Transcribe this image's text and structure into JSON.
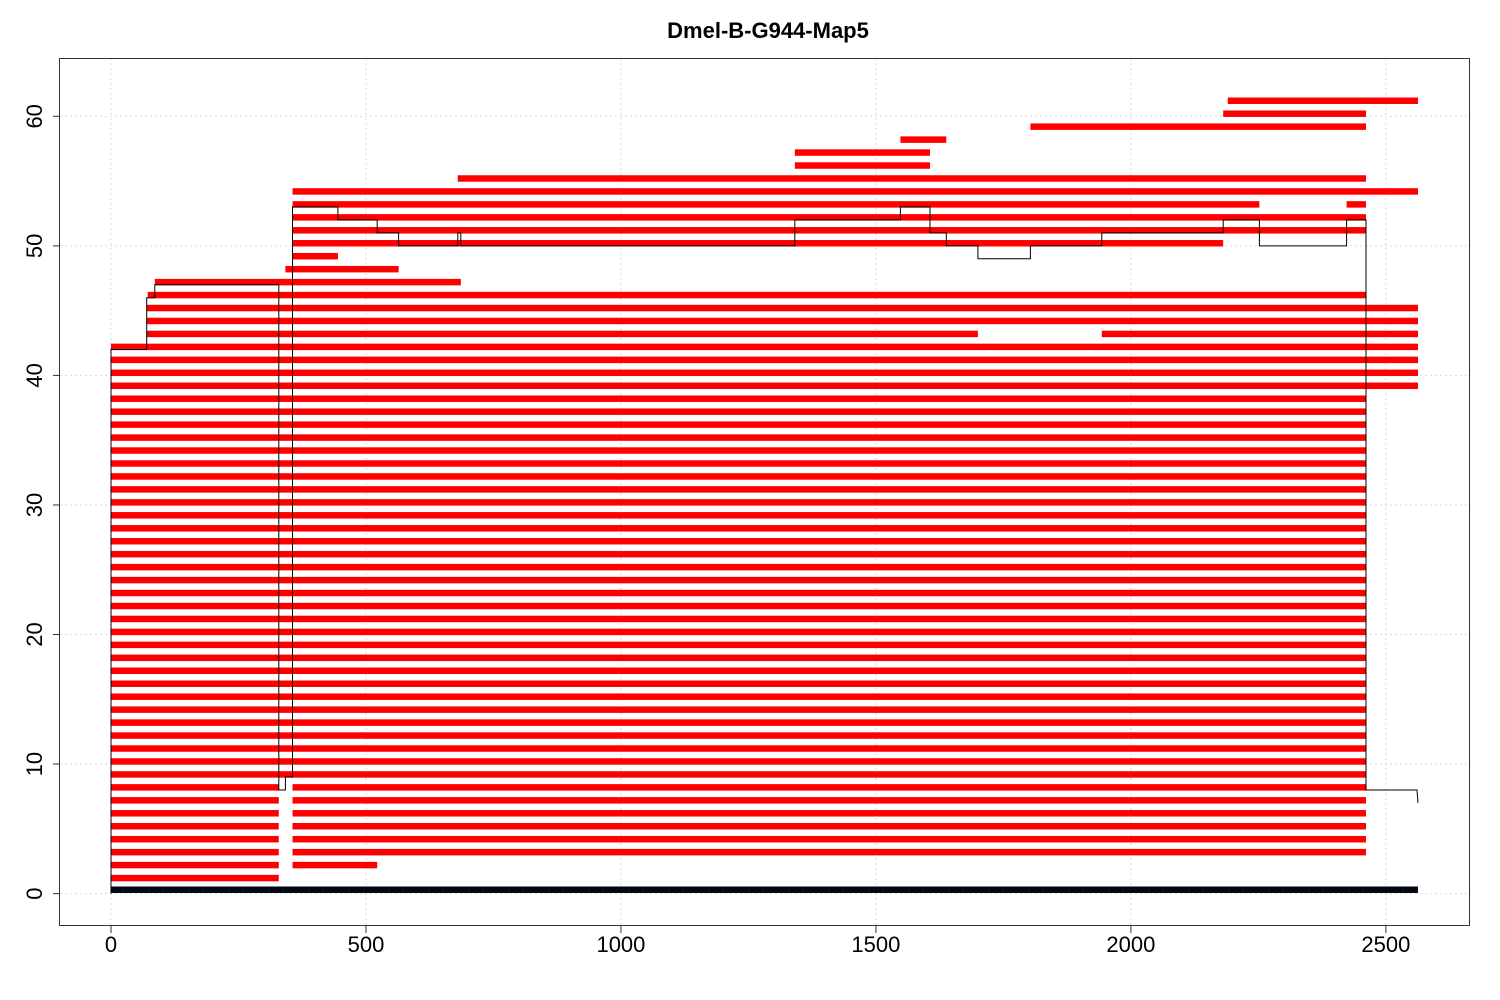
{
  "chart_data": {
    "type": "segment-map",
    "title": "Dmel-B-G944-Map5",
    "xlim": [
      -100,
      2665
    ],
    "ylim": [
      -2.5,
      64.5
    ],
    "x_ticks": [
      0,
      500,
      1000,
      1500,
      2000,
      2500
    ],
    "x_tick_labels": [
      "0",
      "500",
      "1000",
      "1500",
      "2000",
      "2500"
    ],
    "y_ticks": [
      0,
      10,
      20,
      30,
      40,
      50,
      60
    ],
    "y_tick_labels": [
      "0",
      "10",
      "20",
      "30",
      "40",
      "50",
      "60"
    ],
    "grid": true,
    "reference": {
      "y": 0.3,
      "x_start": 0,
      "x_end": 2563,
      "color": "#000814"
    },
    "bar_color": "#ff0000",
    "reads": [
      {
        "y": 1.2,
        "segments": [
          [
            0,
            329
          ]
        ]
      },
      {
        "y": 2.2,
        "segments": [
          [
            0,
            329
          ],
          [
            356,
            522
          ]
        ]
      },
      {
        "y": 3.2,
        "segments": [
          [
            0,
            329
          ],
          [
            356,
            2461
          ]
        ]
      },
      {
        "y": 4.2,
        "segments": [
          [
            0,
            329
          ],
          [
            356,
            2461
          ]
        ]
      },
      {
        "y": 5.2,
        "segments": [
          [
            0,
            329
          ],
          [
            356,
            2461
          ]
        ]
      },
      {
        "y": 6.2,
        "segments": [
          [
            0,
            329
          ],
          [
            356,
            2461
          ]
        ]
      },
      {
        "y": 7.2,
        "segments": [
          [
            0,
            329
          ],
          [
            356,
            2461
          ]
        ]
      },
      {
        "y": 8.2,
        "segments": [
          [
            0,
            329
          ],
          [
            356,
            2461
          ]
        ]
      },
      {
        "y": 9.2,
        "segments": [
          [
            0,
            2461
          ]
        ]
      },
      {
        "y": 10.2,
        "segments": [
          [
            0,
            2461
          ]
        ]
      },
      {
        "y": 11.2,
        "segments": [
          [
            0,
            2461
          ]
        ]
      },
      {
        "y": 12.2,
        "segments": [
          [
            0,
            2461
          ]
        ]
      },
      {
        "y": 13.2,
        "segments": [
          [
            0,
            2461
          ]
        ]
      },
      {
        "y": 14.2,
        "segments": [
          [
            0,
            2461
          ]
        ]
      },
      {
        "y": 15.2,
        "segments": [
          [
            0,
            2461
          ]
        ]
      },
      {
        "y": 16.2,
        "segments": [
          [
            0,
            2461
          ]
        ]
      },
      {
        "y": 17.2,
        "segments": [
          [
            0,
            2461
          ]
        ]
      },
      {
        "y": 18.2,
        "segments": [
          [
            0,
            2461
          ]
        ]
      },
      {
        "y": 19.2,
        "segments": [
          [
            0,
            2461
          ]
        ]
      },
      {
        "y": 20.2,
        "segments": [
          [
            0,
            2461
          ]
        ]
      },
      {
        "y": 21.2,
        "segments": [
          [
            0,
            2461
          ]
        ]
      },
      {
        "y": 22.2,
        "segments": [
          [
            0,
            2461
          ]
        ]
      },
      {
        "y": 23.2,
        "segments": [
          [
            0,
            2461
          ]
        ]
      },
      {
        "y": 24.2,
        "segments": [
          [
            0,
            2461
          ]
        ]
      },
      {
        "y": 25.2,
        "segments": [
          [
            0,
            2461
          ]
        ]
      },
      {
        "y": 26.2,
        "segments": [
          [
            0,
            2461
          ]
        ]
      },
      {
        "y": 27.2,
        "segments": [
          [
            0,
            2461
          ]
        ]
      },
      {
        "y": 28.2,
        "segments": [
          [
            0,
            2461
          ]
        ]
      },
      {
        "y": 29.2,
        "segments": [
          [
            0,
            2461
          ]
        ]
      },
      {
        "y": 30.2,
        "segments": [
          [
            0,
            2461
          ]
        ]
      },
      {
        "y": 31.2,
        "segments": [
          [
            0,
            2461
          ]
        ]
      },
      {
        "y": 32.2,
        "segments": [
          [
            0,
            2461
          ]
        ]
      },
      {
        "y": 33.2,
        "segments": [
          [
            0,
            2461
          ]
        ]
      },
      {
        "y": 34.2,
        "segments": [
          [
            0,
            2461
          ]
        ]
      },
      {
        "y": 35.2,
        "segments": [
          [
            0,
            2461
          ]
        ]
      },
      {
        "y": 36.2,
        "segments": [
          [
            0,
            2461
          ]
        ]
      },
      {
        "y": 37.2,
        "segments": [
          [
            0,
            2461
          ]
        ]
      },
      {
        "y": 38.2,
        "segments": [
          [
            0,
            2461
          ]
        ]
      },
      {
        "y": 39.2,
        "segments": [
          [
            0,
            2461
          ],
          [
            2461,
            2563
          ]
        ]
      },
      {
        "y": 40.2,
        "segments": [
          [
            0,
            2461
          ],
          [
            2461,
            2563
          ]
        ]
      },
      {
        "y": 41.2,
        "segments": [
          [
            0,
            2461
          ],
          [
            2461,
            2563
          ]
        ]
      },
      {
        "y": 42.2,
        "segments": [
          [
            0,
            2461
          ],
          [
            2461,
            2563
          ]
        ]
      },
      {
        "y": 43.2,
        "segments": [
          [
            70,
            1700
          ],
          [
            1943,
            2563
          ]
        ]
      },
      {
        "y": 44.2,
        "segments": [
          [
            70,
            2563
          ]
        ]
      },
      {
        "y": 45.2,
        "segments": [
          [
            70,
            2563
          ]
        ]
      },
      {
        "y": 46.2,
        "segments": [
          [
            72,
            2461
          ]
        ]
      },
      {
        "y": 47.2,
        "segments": [
          [
            86,
            686
          ]
        ]
      },
      {
        "y": 48.2,
        "segments": [
          [
            342,
            564
          ]
        ]
      },
      {
        "y": 49.2,
        "segments": [
          [
            356,
            445
          ]
        ]
      },
      {
        "y": 50.2,
        "segments": [
          [
            356,
            2181
          ]
        ]
      },
      {
        "y": 51.2,
        "segments": [
          [
            356,
            2461
          ]
        ]
      },
      {
        "y": 52.2,
        "segments": [
          [
            356,
            2461
          ]
        ]
      },
      {
        "y": 53.2,
        "segments": [
          [
            356,
            2252
          ],
          [
            2423,
            2461
          ]
        ]
      },
      {
        "y": 54.2,
        "segments": [
          [
            356,
            2563
          ]
        ]
      },
      {
        "y": 55.2,
        "segments": [
          [
            680,
            2461
          ]
        ]
      },
      {
        "y": 56.2,
        "segments": [
          [
            1341,
            1606
          ]
        ]
      },
      {
        "y": 57.2,
        "segments": [
          [
            1341,
            1606
          ]
        ]
      },
      {
        "y": 58.2,
        "segments": [
          [
            1548,
            1638
          ]
        ]
      },
      {
        "y": 59.2,
        "segments": [
          [
            1803,
            2461
          ]
        ]
      },
      {
        "y": 60.2,
        "segments": [
          [
            2181,
            2461
          ]
        ]
      },
      {
        "y": 61.2,
        "segments": [
          [
            2190,
            2563
          ]
        ]
      }
    ],
    "coverage": [
      [
        0,
        0
      ],
      [
        0,
        42
      ],
      [
        70,
        42
      ],
      [
        70,
        46
      ],
      [
        86,
        46
      ],
      [
        86,
        47
      ],
      [
        329,
        47
      ],
      [
        329,
        8
      ],
      [
        342,
        8
      ],
      [
        342,
        9
      ],
      [
        356,
        9
      ],
      [
        356,
        53
      ],
      [
        445,
        53
      ],
      [
        445,
        52
      ],
      [
        522,
        52
      ],
      [
        522,
        51
      ],
      [
        564,
        51
      ],
      [
        564,
        50
      ],
      [
        680,
        50
      ],
      [
        680,
        51
      ],
      [
        686,
        51
      ],
      [
        686,
        50
      ],
      [
        1341,
        50
      ],
      [
        1341,
        52
      ],
      [
        1548,
        52
      ],
      [
        1548,
        53
      ],
      [
        1606,
        53
      ],
      [
        1606,
        51
      ],
      [
        1638,
        51
      ],
      [
        1638,
        50
      ],
      [
        1700,
        50
      ],
      [
        1700,
        49
      ],
      [
        1803,
        49
      ],
      [
        1803,
        50
      ],
      [
        1943,
        50
      ],
      [
        1943,
        51
      ],
      [
        2181,
        51
      ],
      [
        2181,
        52
      ],
      [
        2252,
        52
      ],
      [
        2252,
        50
      ],
      [
        2423,
        50
      ],
      [
        2423,
        52
      ],
      [
        2461,
        52
      ],
      [
        2461,
        8
      ],
      [
        2561,
        8
      ],
      [
        2563,
        7
      ]
    ]
  }
}
